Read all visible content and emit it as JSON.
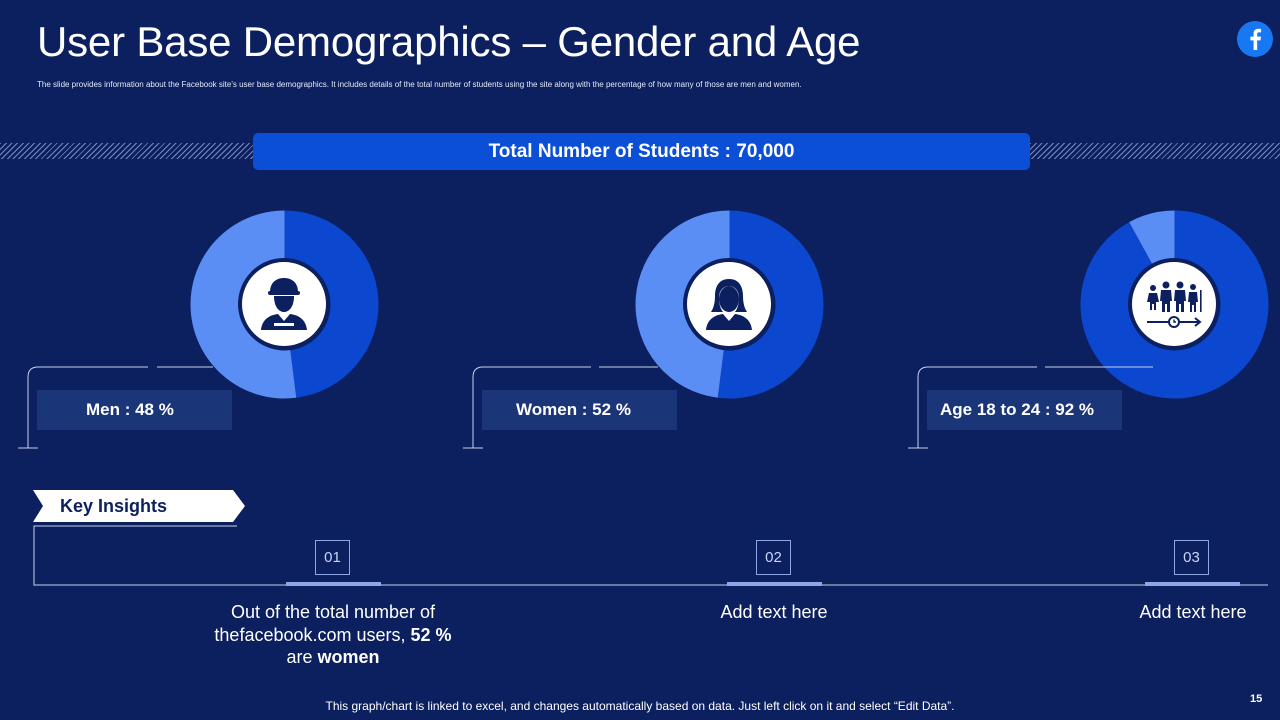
{
  "header": {
    "title": "User Base Demographics – Gender and Age",
    "subtitle": "The slide provides information about the Facebook site's user base demographics. It includes details of the total number of students using the site along with the percentage of how many of those are men and women.",
    "logo_icon": "facebook-logo-icon"
  },
  "banner": {
    "text": "Total Number of Students : 70,000"
  },
  "chart_data": [
    {
      "type": "pie",
      "title": "Men",
      "label": "Men : 48 %",
      "value": 48,
      "series_colors": {
        "value": "#0b47cf",
        "rest": "#5b8ef5"
      },
      "icon": "man-icon"
    },
    {
      "type": "pie",
      "title": "Women",
      "label": "Women : 52 %",
      "value": 52,
      "series_colors": {
        "value": "#0b47cf",
        "rest": "#5b8ef5"
      },
      "icon": "woman-icon"
    },
    {
      "type": "pie",
      "title": "Age 18 to 24",
      "label": "Age 18 to 24 : 92 %",
      "value": 92,
      "series_colors": {
        "value": "#0b47cf",
        "rest": "#5b8ef5"
      },
      "icon": "age-group-icon"
    }
  ],
  "insights": {
    "heading": "Key Insights",
    "items": [
      {
        "number": "01",
        "text_parts": [
          "Out of the total number of thefacebook.com users, ",
          "52 %",
          " are ",
          "women"
        ]
      },
      {
        "number": "02",
        "text": "Add text here"
      },
      {
        "number": "03",
        "text": "Add text here"
      }
    ]
  },
  "footer": {
    "note": "This graph/chart is linked to excel, and changes automatically based on data. Just left click on it and select “Edit Data”.",
    "page_number": "15"
  },
  "colors": {
    "background": "#0c1f5e",
    "accent": "#0a4fd6",
    "dark_slice": "#0b47cf",
    "light_slice": "#5b8ef5"
  }
}
